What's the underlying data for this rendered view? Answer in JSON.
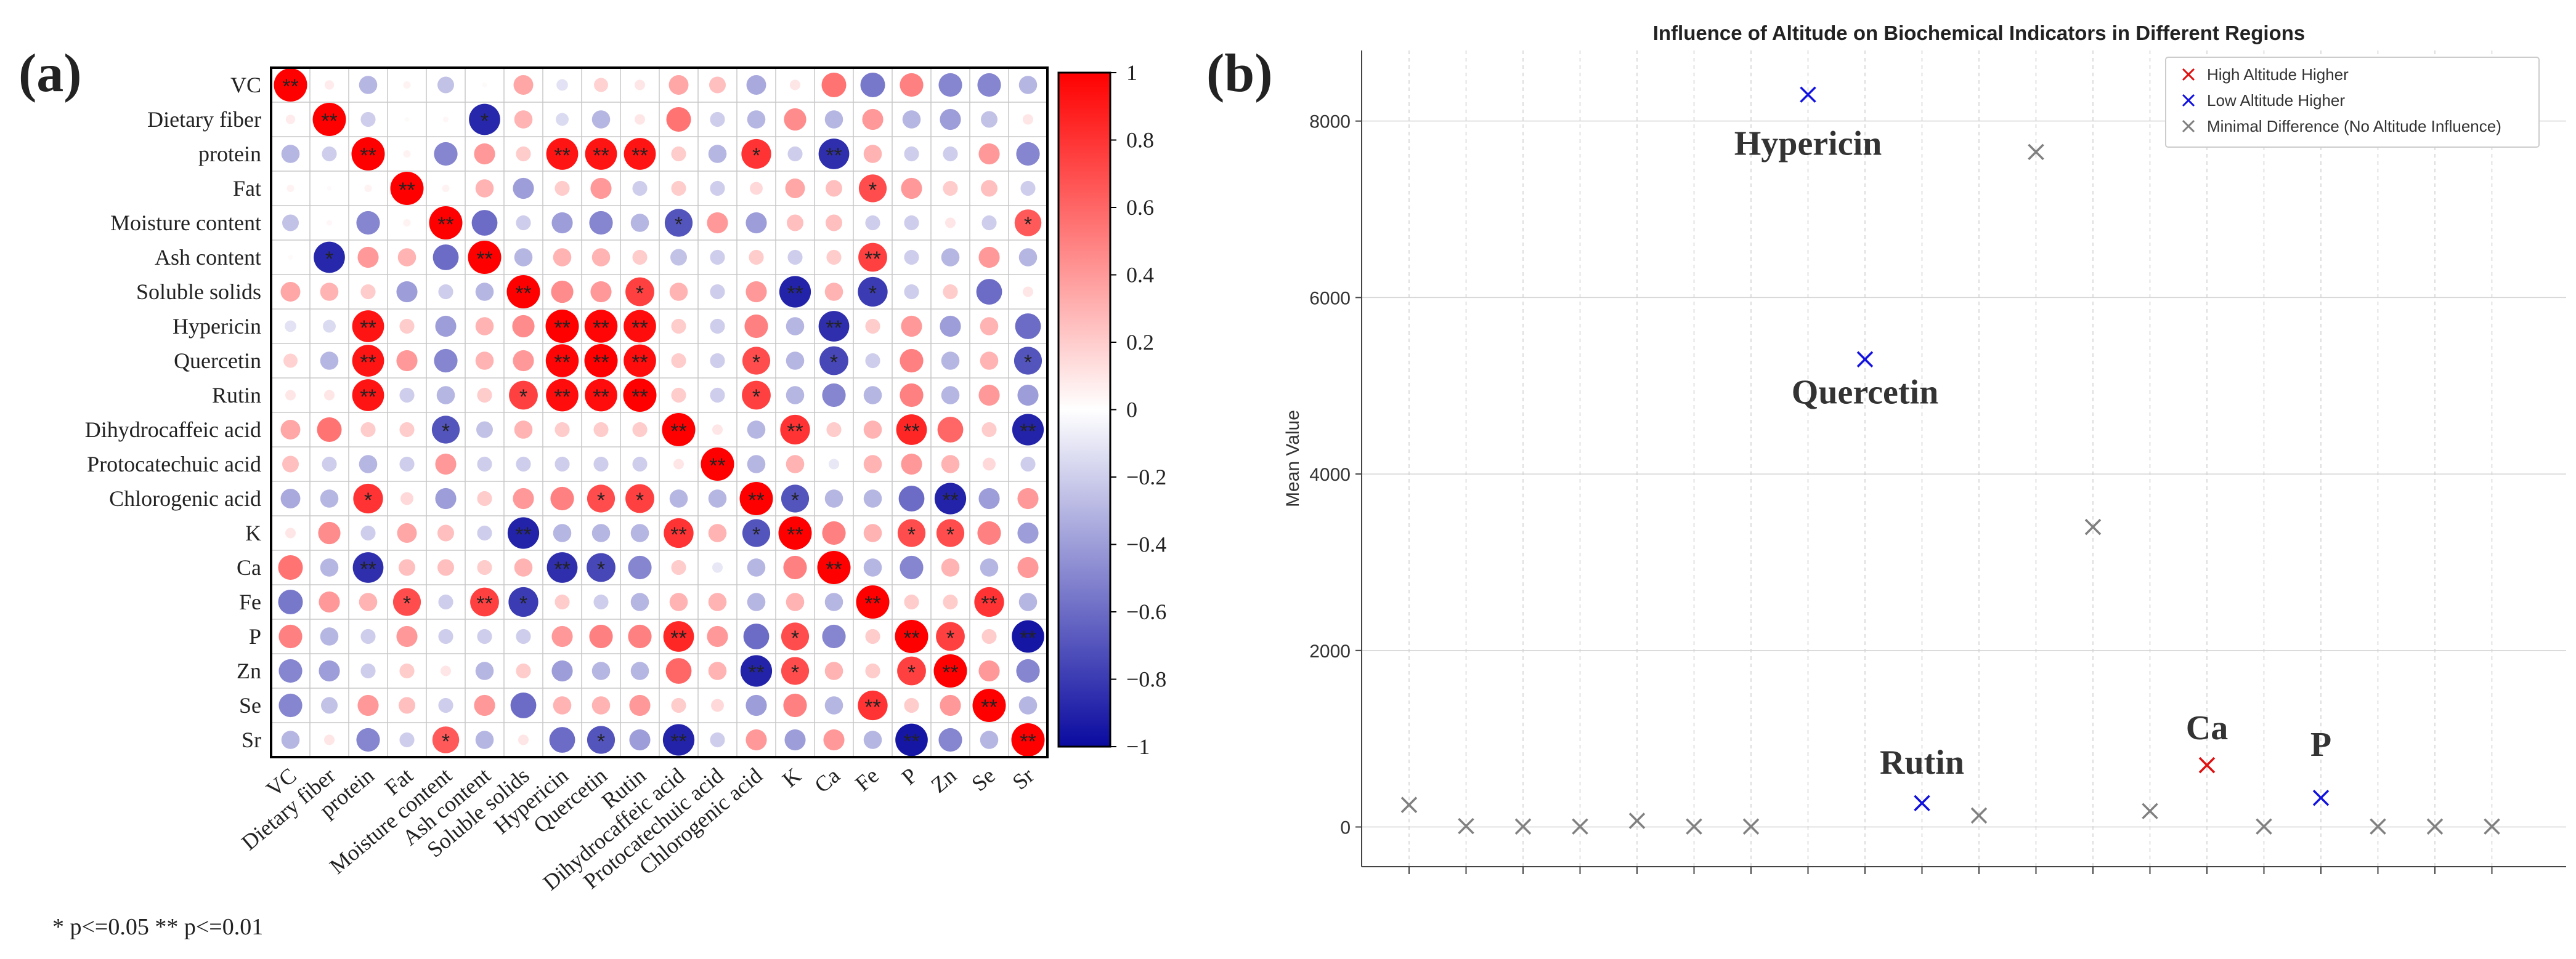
{
  "panel_a_label": "(a)",
  "panel_b_label": "(b)",
  "significance_note": "* p<=0.05  ** p<=0.01",
  "chart_data": [
    {
      "type": "heatmap",
      "variant": "correlation-circle-matrix",
      "title": "",
      "labels": [
        "VC",
        "Dietary fiber",
        "protein",
        "Fat",
        "Moisture content",
        "Ash content",
        "Soluble solids",
        "Hypericin",
        "Quercetin",
        "Rutin",
        "Dihydrocaffeic acid",
        "Protocatechuic acid",
        "Chlorogenic acid",
        "K",
        "Ca",
        "Fe",
        "P",
        "Zn",
        "Se",
        "Sr"
      ],
      "matrix": [
        [
          1.0,
          0.08,
          -0.3,
          0.05,
          -0.25,
          0.02,
          0.35,
          -0.12,
          0.18,
          0.1,
          0.35,
          0.25,
          -0.35,
          0.1,
          0.55,
          -0.55,
          0.5,
          -0.5,
          -0.5,
          -0.3
        ],
        [
          0.08,
          1.0,
          -0.2,
          0.02,
          0.03,
          -0.88,
          0.3,
          -0.15,
          -0.3,
          0.1,
          0.55,
          -0.2,
          -0.3,
          0.45,
          -0.3,
          0.4,
          -0.3,
          -0.4,
          -0.25,
          0.1
        ],
        [
          -0.3,
          -0.2,
          1.0,
          0.05,
          -0.5,
          0.4,
          0.2,
          0.92,
          0.92,
          0.92,
          0.2,
          -0.3,
          0.8,
          -0.2,
          -0.85,
          0.3,
          -0.2,
          -0.2,
          0.4,
          -0.5
        ],
        [
          0.05,
          0.02,
          0.05,
          1.0,
          0.05,
          0.3,
          -0.4,
          0.2,
          0.4,
          -0.2,
          0.2,
          -0.2,
          0.15,
          0.35,
          0.25,
          0.7,
          0.4,
          0.2,
          0.25,
          -0.2
        ],
        [
          -0.25,
          0.03,
          -0.5,
          0.05,
          1.0,
          -0.6,
          -0.2,
          -0.4,
          -0.5,
          -0.3,
          -0.7,
          0.4,
          -0.4,
          0.25,
          0.25,
          -0.2,
          -0.2,
          0.1,
          -0.2,
          0.65
        ],
        [
          0.02,
          -0.88,
          0.4,
          0.3,
          -0.6,
          1.0,
          -0.3,
          0.3,
          0.3,
          0.2,
          -0.25,
          -0.2,
          0.2,
          -0.2,
          0.2,
          0.75,
          -0.2,
          -0.3,
          0.4,
          -0.3
        ],
        [
          0.35,
          0.3,
          0.2,
          -0.4,
          -0.2,
          -0.3,
          1.0,
          0.45,
          0.4,
          0.75,
          0.3,
          -0.2,
          0.4,
          -0.9,
          0.3,
          -0.8,
          -0.2,
          0.2,
          -0.6,
          0.1
        ],
        [
          -0.12,
          -0.15,
          0.92,
          0.2,
          -0.4,
          0.3,
          0.45,
          1.0,
          0.98,
          0.95,
          0.2,
          -0.2,
          0.5,
          -0.3,
          -0.85,
          0.2,
          0.4,
          -0.4,
          0.3,
          -0.6
        ],
        [
          0.18,
          -0.3,
          0.92,
          0.4,
          -0.5,
          0.3,
          0.4,
          0.98,
          1.0,
          0.95,
          0.2,
          -0.2,
          0.7,
          -0.3,
          -0.75,
          -0.2,
          0.5,
          -0.3,
          0.3,
          -0.7
        ],
        [
          0.1,
          0.1,
          0.92,
          -0.2,
          -0.3,
          0.2,
          0.75,
          0.95,
          0.95,
          1.0,
          0.2,
          -0.2,
          0.75,
          -0.3,
          -0.5,
          -0.3,
          0.5,
          -0.3,
          0.4,
          -0.4
        ],
        [
          0.35,
          0.55,
          0.2,
          0.2,
          -0.7,
          -0.25,
          0.3,
          0.2,
          0.2,
          0.2,
          1.0,
          0.1,
          -0.3,
          0.8,
          0.2,
          0.3,
          0.85,
          0.6,
          0.2,
          -0.9
        ],
        [
          0.25,
          -0.2,
          -0.3,
          -0.2,
          0.4,
          -0.2,
          -0.2,
          -0.2,
          -0.2,
          -0.2,
          0.1,
          1.0,
          -0.3,
          0.3,
          -0.1,
          0.3,
          0.4,
          0.3,
          0.15,
          -0.2
        ],
        [
          -0.35,
          -0.3,
          0.8,
          0.15,
          -0.4,
          0.2,
          0.4,
          0.5,
          0.7,
          0.75,
          -0.3,
          -0.3,
          1.0,
          -0.7,
          -0.3,
          -0.3,
          -0.6,
          -0.9,
          -0.4,
          0.4
        ],
        [
          0.1,
          0.45,
          -0.2,
          0.35,
          0.25,
          -0.2,
          -0.9,
          -0.3,
          -0.3,
          -0.3,
          0.8,
          0.3,
          -0.7,
          1.0,
          0.5,
          0.3,
          0.7,
          0.7,
          0.5,
          -0.4
        ],
        [
          0.55,
          -0.3,
          -0.85,
          0.25,
          0.25,
          0.2,
          0.3,
          -0.85,
          -0.75,
          -0.5,
          0.2,
          -0.1,
          -0.3,
          0.5,
          1.0,
          -0.3,
          -0.5,
          0.3,
          -0.3,
          0.4
        ],
        [
          -0.55,
          0.4,
          0.3,
          0.7,
          -0.2,
          0.75,
          -0.8,
          0.2,
          -0.2,
          -0.3,
          0.3,
          0.3,
          -0.3,
          0.3,
          -0.3,
          1.0,
          0.2,
          0.2,
          0.8,
          -0.3
        ],
        [
          0.5,
          -0.3,
          -0.2,
          0.4,
          -0.2,
          -0.2,
          -0.2,
          0.4,
          0.5,
          0.5,
          0.85,
          0.4,
          -0.6,
          0.7,
          -0.5,
          0.2,
          1.0,
          0.75,
          0.2,
          -0.95
        ],
        [
          -0.5,
          -0.4,
          -0.2,
          0.2,
          0.1,
          -0.3,
          0.2,
          -0.4,
          -0.3,
          -0.3,
          0.6,
          0.3,
          -0.9,
          0.7,
          0.3,
          0.2,
          0.75,
          1.0,
          0.4,
          -0.5
        ],
        [
          -0.5,
          -0.25,
          0.4,
          0.25,
          -0.2,
          0.4,
          -0.6,
          0.3,
          0.3,
          0.4,
          0.2,
          0.15,
          -0.4,
          0.5,
          -0.3,
          0.8,
          0.2,
          0.4,
          1.0,
          -0.3
        ],
        [
          -0.3,
          0.1,
          -0.5,
          -0.2,
          0.65,
          -0.3,
          0.1,
          -0.6,
          -0.7,
          -0.4,
          -0.9,
          -0.2,
          0.4,
          -0.4,
          0.4,
          -0.3,
          -0.95,
          -0.5,
          -0.3,
          1.0
        ]
      ],
      "significance": [
        [
          "**",
          "",
          "",
          "",
          "",
          "",
          "",
          "",
          "",
          "",
          "",
          "",
          "",
          "",
          "",
          "",
          "",
          "",
          "",
          ""
        ],
        [
          "",
          "**",
          "",
          "",
          "",
          "*",
          "",
          "",
          "",
          "",
          "",
          "",
          "",
          "",
          "",
          "",
          "",
          "",
          "",
          ""
        ],
        [
          "",
          "",
          "**",
          "",
          "",
          "",
          "",
          "**",
          "**",
          "**",
          "",
          "",
          "*",
          "",
          "**",
          "",
          "",
          "",
          "",
          ""
        ],
        [
          "",
          "",
          "",
          "**",
          "",
          "",
          "",
          "",
          "",
          "",
          "",
          "",
          "",
          "",
          "",
          "*",
          "",
          "",
          "",
          ""
        ],
        [
          "",
          "",
          "",
          "",
          "**",
          "",
          "",
          "",
          "",
          "",
          "*",
          "",
          "",
          "",
          "",
          "",
          "",
          "",
          "",
          "*"
        ],
        [
          "",
          "*",
          "",
          "",
          "",
          "**",
          "",
          "",
          "",
          "",
          "",
          "",
          "",
          "",
          "",
          "**",
          "",
          "",
          "",
          ""
        ],
        [
          "",
          "",
          "",
          "",
          "",
          "",
          "**",
          "",
          "",
          "*",
          "",
          "",
          "",
          "**",
          "",
          "*",
          "",
          "",
          "",
          ""
        ],
        [
          "",
          "",
          "**",
          "",
          "",
          "",
          "",
          "**",
          "**",
          "**",
          "",
          "",
          "",
          "",
          "**",
          "",
          "",
          "",
          "",
          ""
        ],
        [
          "",
          "",
          "**",
          "",
          "",
          "",
          "",
          "**",
          "**",
          "**",
          "",
          "",
          "*",
          "",
          "*",
          "",
          "",
          "",
          "",
          "*"
        ],
        [
          "",
          "",
          "**",
          "",
          "",
          "",
          "*",
          "**",
          "**",
          "**",
          "",
          "",
          "*",
          "",
          "",
          "",
          "",
          "",
          "",
          ""
        ],
        [
          "",
          "",
          "",
          "",
          "*",
          "",
          "",
          "",
          "",
          "",
          "**",
          "",
          "",
          "**",
          "",
          "",
          "**",
          "",
          "",
          "**"
        ],
        [
          "",
          "",
          "",
          "",
          "",
          "",
          "",
          "",
          "",
          "",
          "",
          "**",
          "",
          "",
          "",
          "",
          "",
          "",
          "",
          ""
        ],
        [
          "",
          "",
          "*",
          "",
          "",
          "",
          "",
          "",
          "*",
          "*",
          "",
          "",
          "**",
          "*",
          "",
          "",
          "",
          "**",
          "",
          ""
        ],
        [
          "",
          "",
          "",
          "",
          "",
          "",
          "**",
          "",
          "",
          "",
          "**",
          "",
          "*",
          "**",
          "",
          "",
          "*",
          "*",
          "",
          ""
        ],
        [
          "",
          "",
          "**",
          "",
          "",
          "",
          "",
          "**",
          "*",
          "",
          "",
          "",
          "",
          "",
          "**",
          "",
          "",
          "",
          "",
          ""
        ],
        [
          "",
          "",
          "",
          "*",
          "",
          "**",
          "*",
          "",
          "",
          "",
          "",
          "",
          "",
          "",
          "",
          "**",
          "",
          "",
          "**",
          ""
        ],
        [
          "",
          "",
          "",
          "",
          "",
          "",
          "",
          "",
          "",
          "",
          "**",
          "",
          "",
          "*",
          "",
          "",
          "**",
          "*",
          "",
          "**"
        ],
        [
          "",
          "",
          "",
          "",
          "",
          "",
          "",
          "",
          "",
          "",
          "",
          "",
          "**",
          "*",
          "",
          "",
          "*",
          "**",
          "",
          ""
        ],
        [
          "",
          "",
          "",
          "",
          "",
          "",
          "",
          "",
          "",
          "",
          "",
          "",
          "",
          "",
          "",
          "**",
          "",
          "",
          "**",
          ""
        ],
        [
          "",
          "",
          "",
          "",
          "*",
          "",
          "",
          "",
          "*",
          "",
          "**",
          "",
          "",
          "",
          "",
          "",
          "**",
          "",
          "",
          "**"
        ]
      ],
      "colorbar": {
        "min": -1,
        "max": 1,
        "ticks": [
          "1",
          "0.8",
          "0.6",
          "0.4",
          "0.2",
          "0",
          "−0.2",
          "−0.4",
          "−0.6",
          "−0.8",
          "−1"
        ]
      },
      "colors": {
        "negative": "#0a0aa0",
        "neutral": "#ffffff",
        "positive": "#ff0000",
        "frame": "#000000",
        "grid": "#c8c8c8"
      }
    },
    {
      "type": "scatter",
      "title": "Influence of Altitude on Biochemical Indicators in Different Regions",
      "xlabel": "",
      "ylabel": "Mean Value",
      "ylim": [
        -450,
        8800
      ],
      "xlim": [
        0,
        20
      ],
      "yticks": [
        "0",
        "2000",
        "4000",
        "6000",
        "8000"
      ],
      "ytick_values": [
        0,
        2000,
        4000,
        6000,
        8000
      ],
      "grid": true,
      "legend_position": "top-right",
      "series": [
        {
          "name": "High Altitude Higher",
          "color": "#e01010",
          "marker": "x"
        },
        {
          "name": "Low Altitude Higher",
          "color": "#1010e0",
          "marker": "x"
        },
        {
          "name": "Minimal Difference (No Altitude Influence)",
          "color": "#808080",
          "marker": "x"
        }
      ],
      "points": [
        {
          "x": 1,
          "y": 250,
          "series": 2,
          "label": ""
        },
        {
          "x": 2,
          "y": 10,
          "series": 2,
          "label": ""
        },
        {
          "x": 3,
          "y": 5,
          "series": 2,
          "label": ""
        },
        {
          "x": 4,
          "y": 5,
          "series": 2,
          "label": ""
        },
        {
          "x": 5,
          "y": 70,
          "series": 2,
          "label": ""
        },
        {
          "x": 6,
          "y": 5,
          "series": 2,
          "label": ""
        },
        {
          "x": 7,
          "y": 5,
          "series": 2,
          "label": ""
        },
        {
          "x": 8,
          "y": 8300,
          "series": 1,
          "label": "Hypericin"
        },
        {
          "x": 9,
          "y": 5300,
          "series": 1,
          "label": "Quercetin"
        },
        {
          "x": 10,
          "y": 270,
          "series": 1,
          "label": "Rutin"
        },
        {
          "x": 11,
          "y": 130,
          "series": 2,
          "label": ""
        },
        {
          "x": 12,
          "y": 7650,
          "series": 2,
          "label": ""
        },
        {
          "x": 13,
          "y": 3400,
          "series": 2,
          "label": ""
        },
        {
          "x": 14,
          "y": 180,
          "series": 2,
          "label": ""
        },
        {
          "x": 15,
          "y": 700,
          "series": 0,
          "label": "Ca"
        },
        {
          "x": 16,
          "y": 5,
          "series": 2,
          "label": ""
        },
        {
          "x": 17,
          "y": 330,
          "series": 1,
          "label": "P"
        },
        {
          "x": 18,
          "y": 5,
          "series": 2,
          "label": ""
        },
        {
          "x": 19,
          "y": 5,
          "series": 2,
          "label": ""
        },
        {
          "x": 20,
          "y": 5,
          "series": 2,
          "label": ""
        }
      ]
    }
  ]
}
